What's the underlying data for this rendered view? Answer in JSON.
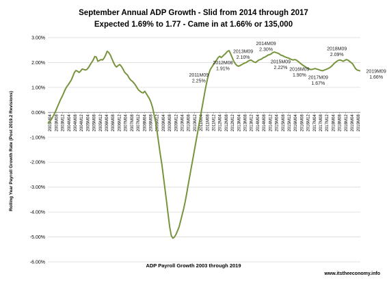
{
  "chart_data": {
    "type": "line",
    "title": "September Annual ADP Growth - Slid from 2014 through 2017",
    "subtitle": "Expected 1.69% to 1.77 - Came in at 1.66% or 135,000",
    "ylabel": "Rolling Year Payroll Growth Rate (Post 2019.2 Revisions)",
    "xlabel": "ADP Payroll Growth 2003 through 2019",
    "credit": "www.itstheeconomy.info",
    "ylim": [
      -6,
      3
    ],
    "yticks": [
      "3.00%",
      "2.00%",
      "1.00%",
      "0.00%",
      "-1.00%",
      "-2.00%",
      "-3.00%",
      "-4.00%",
      "-5.00%",
      "-6.00%"
    ],
    "x_labels": [
      "2003M04",
      "2003M08",
      "2003M12",
      "2004M04",
      "2004M08",
      "2004M12",
      "2005M04",
      "2005M08",
      "2005M12",
      "2006M04",
      "2006M08",
      "2006M12",
      "2007M04",
      "2007M08",
      "2007M12",
      "2008M04",
      "2008M08",
      "2008M12",
      "2009M04",
      "2009M08",
      "2009M12",
      "2010M04",
      "2010M08",
      "2010M12",
      "2011M04",
      "2011M08",
      "2011M12",
      "2012M04",
      "2012M08",
      "2012M12",
      "2013M04",
      "2013M08",
      "2013M12",
      "2014M04",
      "2014M08",
      "2014M12",
      "2015M04",
      "2015M08",
      "2015M12",
      "2016M04",
      "2016M08",
      "2016M12",
      "2017M04",
      "2017M08",
      "2017M12",
      "2018M04",
      "2018M08",
      "2018M12",
      "2019M04",
      "2019M08"
    ],
    "series": [
      {
        "color": "#77933c",
        "values": [
          -0.45,
          -0.38,
          -0.3,
          -0.2,
          -0.08,
          0.05,
          0.2,
          0.35,
          0.5,
          0.62,
          0.75,
          0.9,
          1.02,
          1.1,
          1.2,
          1.3,
          1.45,
          1.6,
          1.68,
          1.65,
          1.6,
          1.66,
          1.74,
          1.72,
          1.7,
          1.72,
          1.8,
          1.9,
          2.0,
          2.1,
          2.24,
          2.22,
          2.05,
          2.08,
          2.12,
          2.1,
          2.18,
          2.3,
          2.45,
          2.4,
          2.3,
          2.15,
          2.0,
          1.88,
          1.82,
          1.88,
          1.92,
          1.85,
          1.75,
          1.62,
          1.55,
          1.5,
          1.38,
          1.3,
          1.25,
          1.18,
          1.1,
          1.0,
          0.9,
          0.85,
          0.8,
          0.78,
          0.85,
          0.75,
          0.65,
          0.55,
          0.4,
          0.2,
          -0.1,
          -0.4,
          -0.8,
          -1.25,
          -1.7,
          -2.1,
          -2.6,
          -3.1,
          -3.6,
          -4.1,
          -4.6,
          -4.95,
          -5.05,
          -5.0,
          -4.9,
          -4.75,
          -4.6,
          -4.35,
          -4.1,
          -3.85,
          -3.55,
          -3.2,
          -2.85,
          -2.5,
          -2.15,
          -1.8,
          -1.45,
          -1.1,
          -0.75,
          -0.4,
          -0.05,
          0.3,
          0.65,
          1.0,
          1.3,
          1.55,
          1.72,
          1.82,
          1.92,
          2.02,
          2.1,
          2.2,
          2.25,
          2.2,
          2.26,
          2.32,
          2.38,
          2.45,
          2.48,
          2.35,
          2.2,
          2.05,
          1.95,
          1.88,
          1.85,
          1.88,
          1.91,
          1.95,
          1.98,
          2.0,
          2.05,
          2.08,
          2.1,
          2.06,
          2.02,
          2.0,
          2.05,
          2.1,
          2.12,
          2.15,
          2.2,
          2.22,
          2.26,
          2.3,
          2.32,
          2.35,
          2.4,
          2.42,
          2.4,
          2.38,
          2.35,
          2.3,
          2.28,
          2.25,
          2.22,
          2.2,
          2.18,
          2.15,
          2.12,
          2.1,
          2.12,
          2.1,
          2.05,
          2.0,
          1.95,
          1.9,
          1.86,
          1.82,
          1.78,
          1.75,
          1.72,
          1.72,
          1.74,
          1.76,
          1.74,
          1.72,
          1.7,
          1.68,
          1.67,
          1.7,
          1.72,
          1.75,
          1.78,
          1.82,
          1.88,
          1.95,
          2.0,
          2.05,
          2.09,
          2.1,
          2.08,
          2.05,
          2.08,
          2.12,
          2.1,
          2.05,
          2.0,
          1.95,
          1.85,
          1.75,
          1.7,
          1.68,
          1.66
        ]
      }
    ],
    "annotations": [
      {
        "label": "2011M09",
        "value": "2.25%",
        "index": 101,
        "dx": -10,
        "dy": -16
      },
      {
        "label": "2012M08",
        "value": "1.91%",
        "index": 112,
        "dx": 0,
        "dy": 12
      },
      {
        "label": "2013M09",
        "value": "2.10%",
        "index": 125,
        "dx": 0,
        "dy": -16
      },
      {
        "label": "2014M09",
        "value": "2.30%",
        "index": 137,
        "dx": 6,
        "dy": -20
      },
      {
        "label": "2015M09",
        "value": "2.22%",
        "index": 149,
        "dx": 0,
        "dy": 12
      },
      {
        "label": "2016M09",
        "value": "1.90%",
        "index": 161,
        "dx": 0,
        "dy": 12
      },
      {
        "label": "2017M09",
        "value": "1.67%",
        "index": 173,
        "dx": 0,
        "dy": 14
      },
      {
        "label": "2018M09",
        "value": "2.09%",
        "index": 185,
        "dx": 0,
        "dy": -16
      },
      {
        "label": "2019M09",
        "value": "1.66%",
        "index": 197,
        "dx": 30,
        "dy": 6
      }
    ]
  }
}
